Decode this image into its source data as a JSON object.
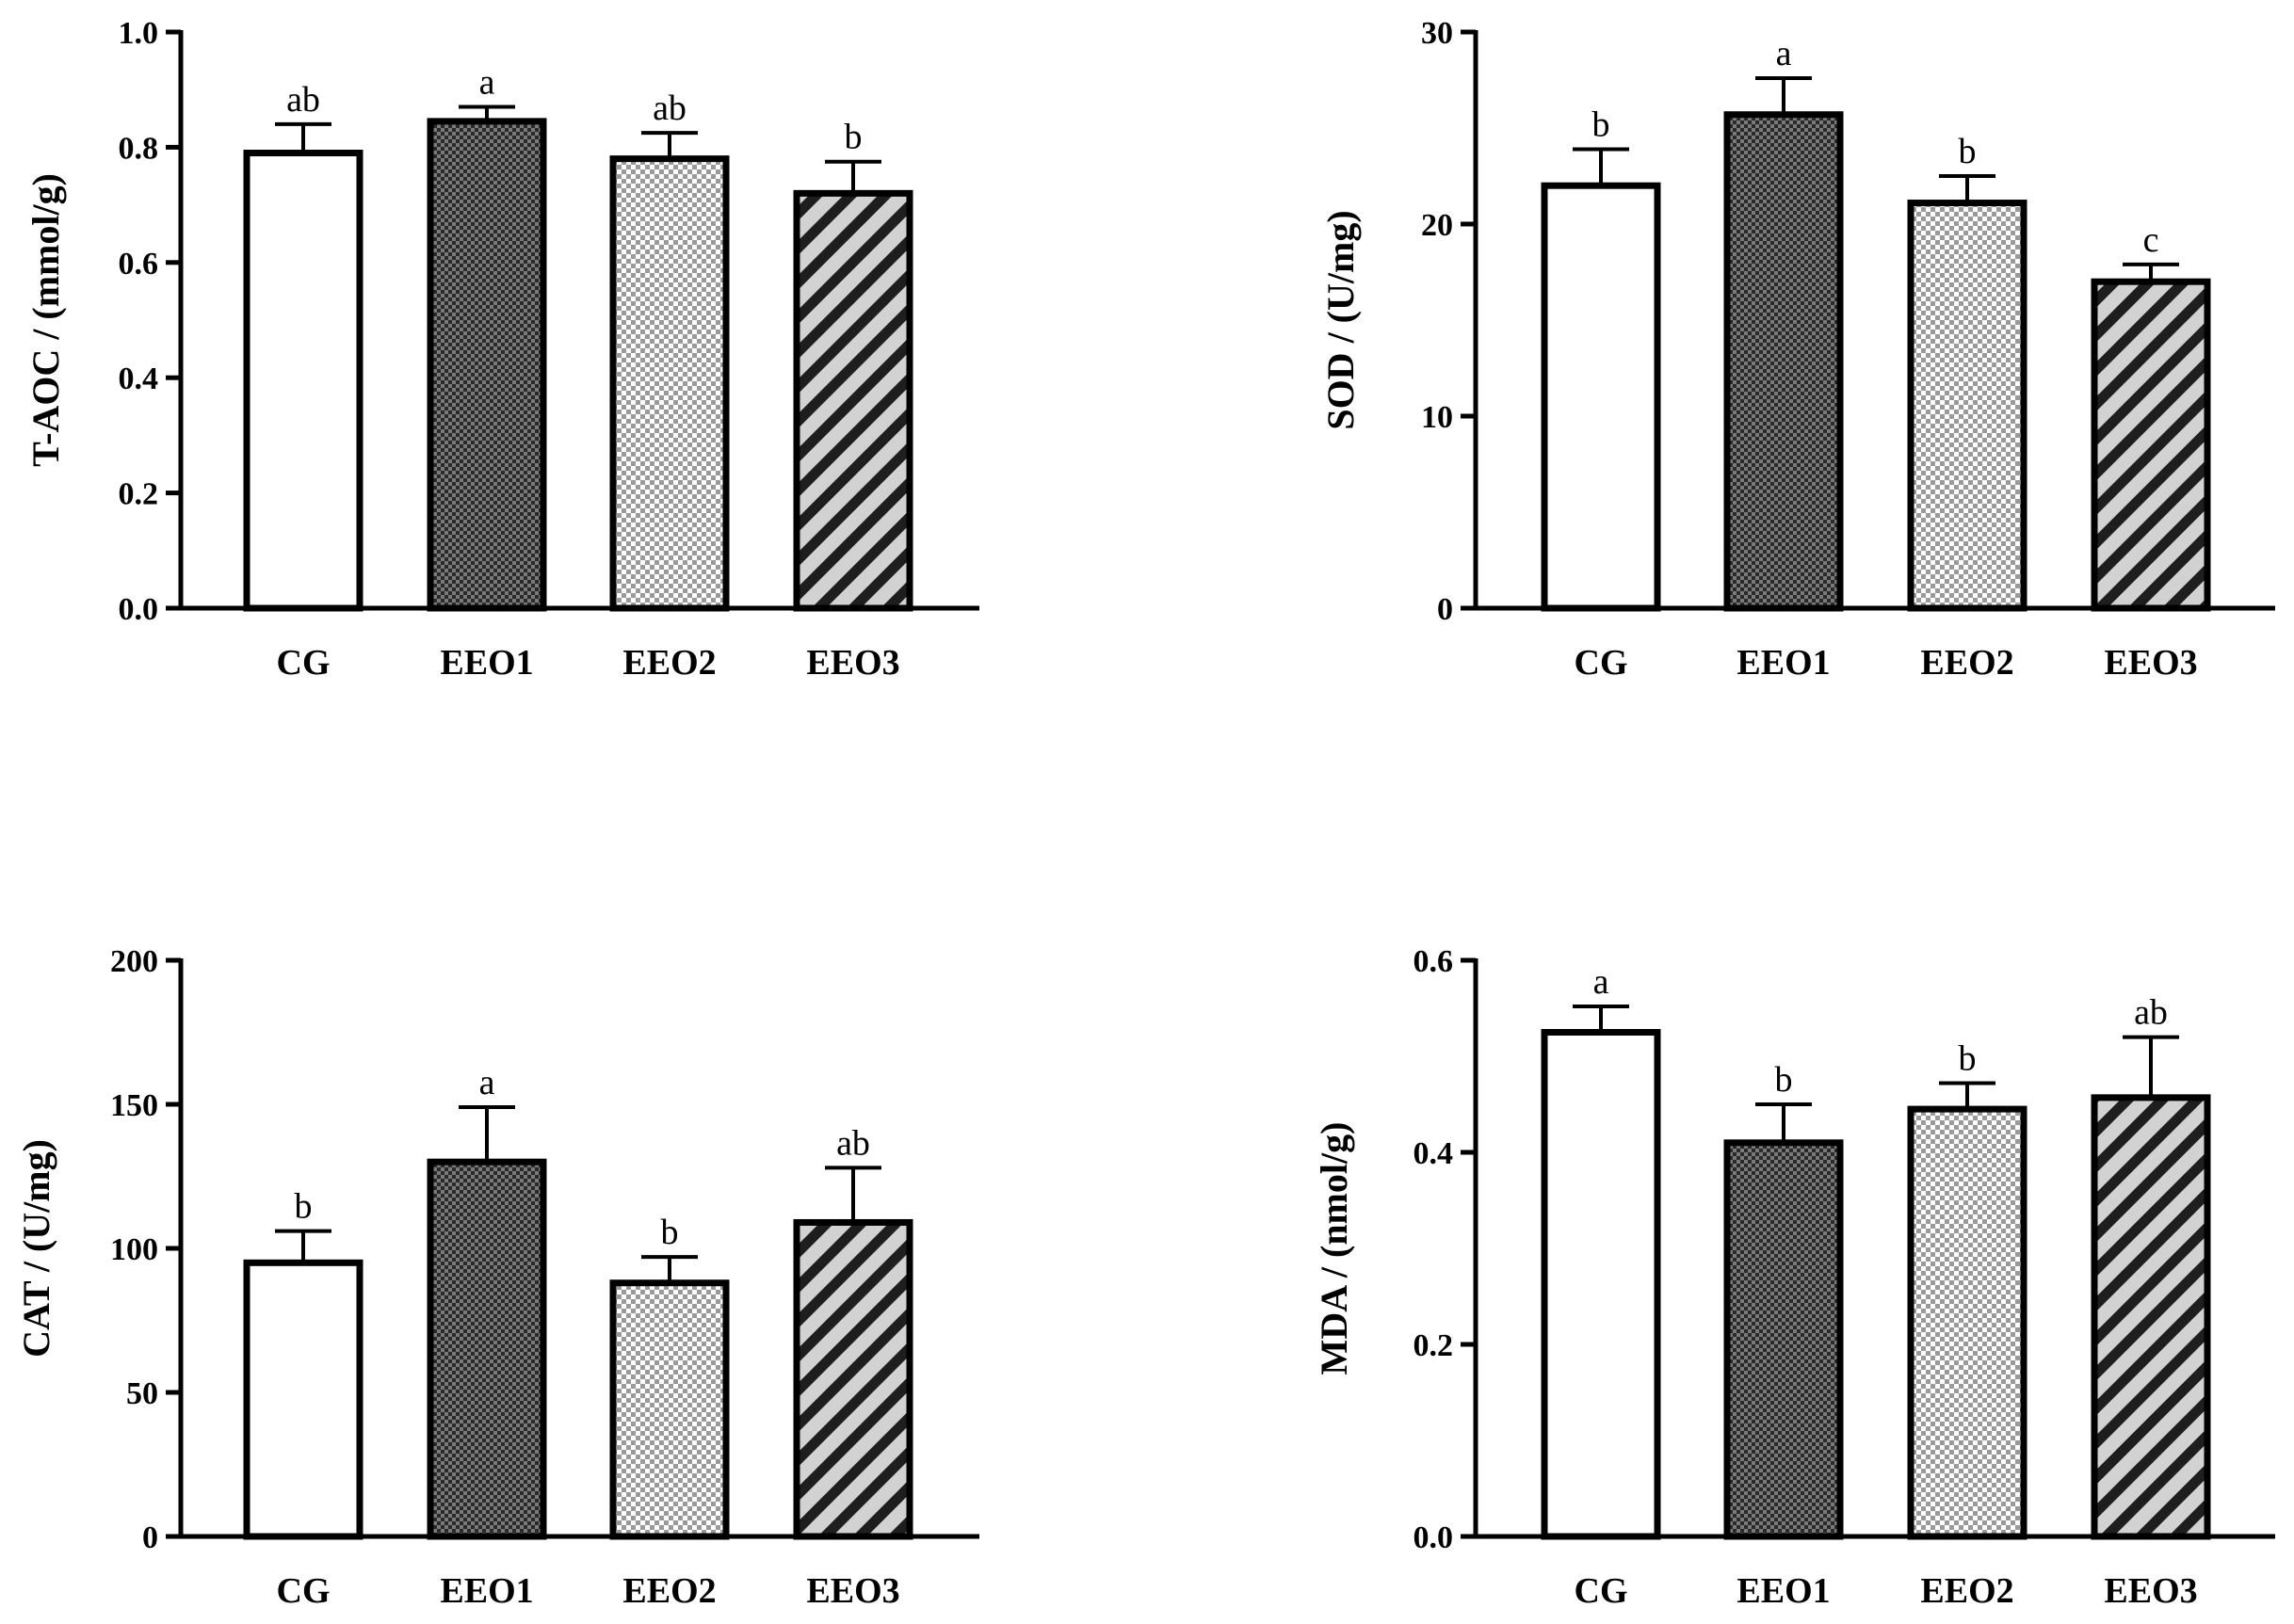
{
  "chart_data": [
    {
      "type": "bar",
      "categories": [
        "CG",
        "EEO1",
        "EEO2",
        "EEO3"
      ],
      "values": [
        0.79,
        0.845,
        0.78,
        0.72
      ],
      "errors": [
        0.05,
        0.025,
        0.045,
        0.055
      ],
      "significance": [
        "ab",
        "a",
        "ab",
        "b"
      ],
      "ylabel": "T-AOC / (mmol/g)",
      "ylim": [
        0,
        1.0
      ],
      "yticks": [
        0.0,
        0.2,
        0.4,
        0.6,
        0.8,
        1.0
      ],
      "ytick_labels": [
        "0.0",
        "0.2",
        "0.4",
        "0.6",
        "0.8",
        "1.0"
      ]
    },
    {
      "type": "bar",
      "categories": [
        "CG",
        "EEO1",
        "EEO2",
        "EEO3"
      ],
      "values": [
        22.0,
        25.7,
        21.1,
        17.0
      ],
      "errors": [
        1.9,
        1.9,
        1.4,
        0.9
      ],
      "significance": [
        "b",
        "a",
        "b",
        "c"
      ],
      "ylabel": "SOD / (U/mg)",
      "ylim": [
        0,
        30
      ],
      "yticks": [
        0,
        10,
        20,
        30
      ],
      "ytick_labels": [
        "0",
        "10",
        "20",
        "30"
      ]
    },
    {
      "type": "bar",
      "categories": [
        "CG",
        "EEO1",
        "EEO2",
        "EEO3"
      ],
      "values": [
        95,
        130,
        88,
        109
      ],
      "errors": [
        11,
        19,
        9,
        19
      ],
      "significance": [
        "b",
        "a",
        "b",
        "ab"
      ],
      "ylabel": "CAT / (U/mg)",
      "ylim": [
        0,
        200
      ],
      "yticks": [
        0,
        50,
        100,
        150,
        200
      ],
      "ytick_labels": [
        "0",
        "50",
        "100",
        "150",
        "200"
      ]
    },
    {
      "type": "bar",
      "categories": [
        "CG",
        "EEO1",
        "EEO2",
        "EEO3"
      ],
      "values": [
        0.525,
        0.41,
        0.445,
        0.457
      ],
      "errors": [
        0.027,
        0.04,
        0.027,
        0.063
      ],
      "significance": [
        "a",
        "b",
        "b",
        "ab"
      ],
      "ylabel": "MDA / (nmol/g)",
      "ylim": [
        0,
        0.6
      ],
      "yticks": [
        0.0,
        0.2,
        0.4,
        0.6
      ],
      "ytick_labels": [
        "0.0",
        "0.2",
        "0.4",
        "0.6"
      ]
    }
  ]
}
